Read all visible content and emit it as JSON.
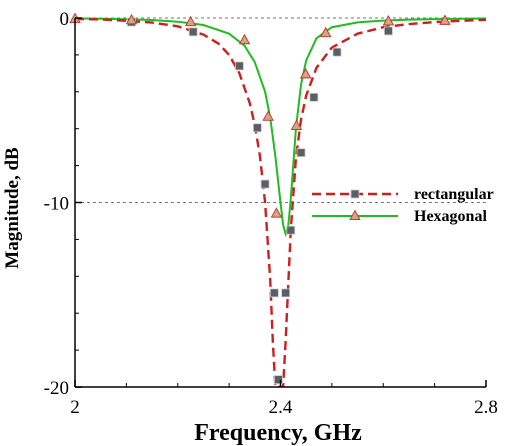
{
  "chart_data": {
    "type": "line",
    "xlabel": "Frequency, GHz",
    "ylabel": "Magnitude, dB",
    "xlim": [
      2.0,
      2.8
    ],
    "ylim": [
      -20,
      0
    ],
    "x_ticks": [
      {
        "value": 2.0,
        "label": "2"
      },
      {
        "value": 2.4,
        "label": "2.4"
      },
      {
        "value": 2.8,
        "label": "2.8"
      }
    ],
    "y_ticks": [
      {
        "value": 0,
        "label": "0"
      },
      {
        "value": -10,
        "label": "-10"
      },
      {
        "value": -20,
        "label": "-20"
      }
    ],
    "reference_lines": [
      0,
      -10
    ],
    "legend_position": "center-right",
    "series": [
      {
        "name": "rectangular",
        "color": "#cc1f1f",
        "line_style": "dashed",
        "marker": "square",
        "marker_color": "#5a5f66",
        "x": [
          2.0,
          2.05,
          2.1,
          2.15,
          2.2,
          2.25,
          2.28,
          2.3,
          2.32,
          2.34,
          2.35,
          2.36,
          2.37,
          2.38,
          2.385,
          2.39,
          2.395,
          2.4,
          2.405,
          2.41,
          2.415,
          2.42,
          2.43,
          2.44,
          2.45,
          2.47,
          2.5,
          2.55,
          2.6,
          2.65,
          2.7,
          2.75,
          2.8
        ],
        "values": [
          -0.05,
          -0.08,
          -0.15,
          -0.25,
          -0.45,
          -0.9,
          -1.4,
          -2.0,
          -3.0,
          -4.6,
          -5.8,
          -7.5,
          -10.0,
          -14.2,
          -17.5,
          -20.0,
          -20.0,
          -20.0,
          -20.0,
          -17.5,
          -14.5,
          -11.5,
          -7.6,
          -5.5,
          -4.2,
          -2.7,
          -1.6,
          -0.85,
          -0.5,
          -0.33,
          -0.22,
          -0.15,
          -0.1
        ],
        "marker_points": [
          {
            "x": 2.11,
            "y": -0.22
          },
          {
            "x": 2.23,
            "y": -0.75
          },
          {
            "x": 2.32,
            "y": -2.6
          },
          {
            "x": 2.355,
            "y": -5.95
          },
          {
            "x": 2.37,
            "y": -9.0
          },
          {
            "x": 2.388,
            "y": -14.9
          },
          {
            "x": 2.396,
            "y": -19.6
          },
          {
            "x": 2.41,
            "y": -14.9
          },
          {
            "x": 2.42,
            "y": -11.5
          },
          {
            "x": 2.44,
            "y": -7.3
          },
          {
            "x": 2.465,
            "y": -4.3
          },
          {
            "x": 2.51,
            "y": -1.85
          },
          {
            "x": 2.61,
            "y": -0.7
          }
        ]
      },
      {
        "name": "Hexagonal",
        "color": "#22bb22",
        "line_style": "solid",
        "marker": "triangle",
        "marker_color": "#d9a08a",
        "x": [
          2.0,
          2.05,
          2.1,
          2.15,
          2.2,
          2.25,
          2.3,
          2.33,
          2.35,
          2.37,
          2.38,
          2.39,
          2.4,
          2.405,
          2.41,
          2.415,
          2.42,
          2.43,
          2.44,
          2.45,
          2.47,
          2.5,
          2.55,
          2.6,
          2.65,
          2.7,
          2.75,
          2.8
        ],
        "values": [
          -0.02,
          -0.04,
          -0.07,
          -0.11,
          -0.2,
          -0.38,
          -0.85,
          -1.5,
          -2.4,
          -4.0,
          -5.4,
          -7.5,
          -10.0,
          -11.2,
          -11.7,
          -11.3,
          -9.8,
          -6.0,
          -3.6,
          -2.3,
          -1.1,
          -0.5,
          -0.24,
          -0.14,
          -0.09,
          -0.06,
          -0.04,
          -0.03
        ],
        "marker_points": [
          {
            "x": 2.0,
            "y": -0.05
          },
          {
            "x": 2.11,
            "y": -0.12
          },
          {
            "x": 2.225,
            "y": -0.22
          },
          {
            "x": 2.33,
            "y": -1.2
          },
          {
            "x": 2.376,
            "y": -5.35
          },
          {
            "x": 2.392,
            "y": -10.6
          },
          {
            "x": 2.431,
            "y": -5.85
          },
          {
            "x": 2.449,
            "y": -3.05
          },
          {
            "x": 2.488,
            "y": -0.82
          },
          {
            "x": 2.61,
            "y": -0.18
          },
          {
            "x": 2.72,
            "y": -0.15
          }
        ]
      }
    ]
  }
}
